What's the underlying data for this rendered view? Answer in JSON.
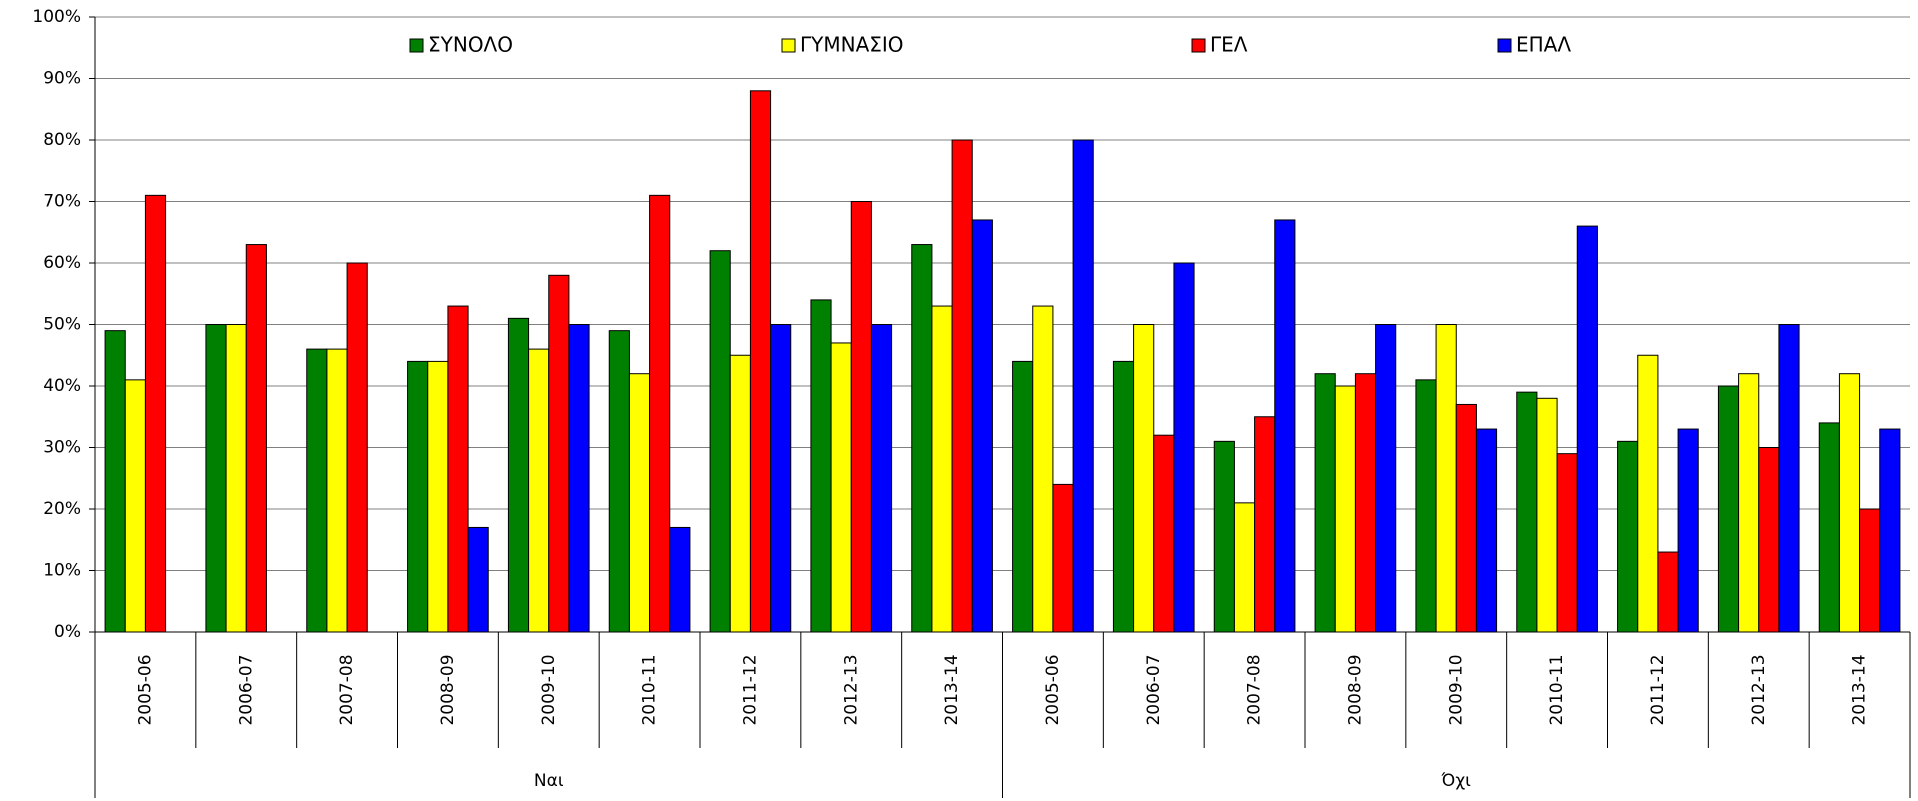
{
  "chart_data": {
    "type": "bar",
    "categories": [
      "2005-06",
      "2006-07",
      "2007-08",
      "2008-09",
      "2009-10",
      "2010-11",
      "2011-12",
      "2012-13",
      "2013-14",
      "2005-06",
      "2006-07",
      "2007-08",
      "2008-09",
      "2009-10",
      "2010-11",
      "2011-12",
      "2012-13",
      "2013-14"
    ],
    "groups": [
      "Ναι",
      "Όχι"
    ],
    "series": [
      {
        "name": "ΣΥΝΟΛΟ",
        "color": "#008000",
        "values": [
          49,
          50,
          46,
          44,
          51,
          49,
          62,
          54,
          63,
          44,
          44,
          31,
          42,
          41,
          39,
          31,
          40,
          34
        ]
      },
      {
        "name": "ΓΥΜΝΑΣΙΟ",
        "color": "#ffff00",
        "values": [
          41,
          50,
          46,
          44,
          46,
          42,
          45,
          47,
          53,
          53,
          50,
          21,
          40,
          50,
          38,
          45,
          42,
          42
        ]
      },
      {
        "name": "ΓΕΛ",
        "color": "#ff0000",
        "values": [
          71,
          63,
          60,
          53,
          58,
          71,
          88,
          70,
          80,
          24,
          32,
          35,
          42,
          37,
          29,
          13,
          30,
          20
        ]
      },
      {
        "name": "ΕΠΑΛ",
        "color": "#0000ff",
        "values": [
          null,
          null,
          null,
          17,
          50,
          17,
          50,
          50,
          67,
          80,
          60,
          67,
          50,
          33,
          66,
          33,
          50,
          33
        ]
      }
    ],
    "ylim": [
      0,
      100
    ],
    "yticks": [
      {
        "value": 0,
        "label": "0%"
      },
      {
        "value": 10,
        "label": "10%"
      },
      {
        "value": 20,
        "label": "20%"
      },
      {
        "value": 30,
        "label": "30%"
      },
      {
        "value": 40,
        "label": "40%"
      },
      {
        "value": 50,
        "label": "50%"
      },
      {
        "value": 60,
        "label": "60%"
      },
      {
        "value": 70,
        "label": "70%"
      },
      {
        "value": 80,
        "label": "80%"
      },
      {
        "value": 90,
        "label": "90%"
      },
      {
        "value": 100,
        "label": "100%"
      }
    ],
    "grid": true
  }
}
